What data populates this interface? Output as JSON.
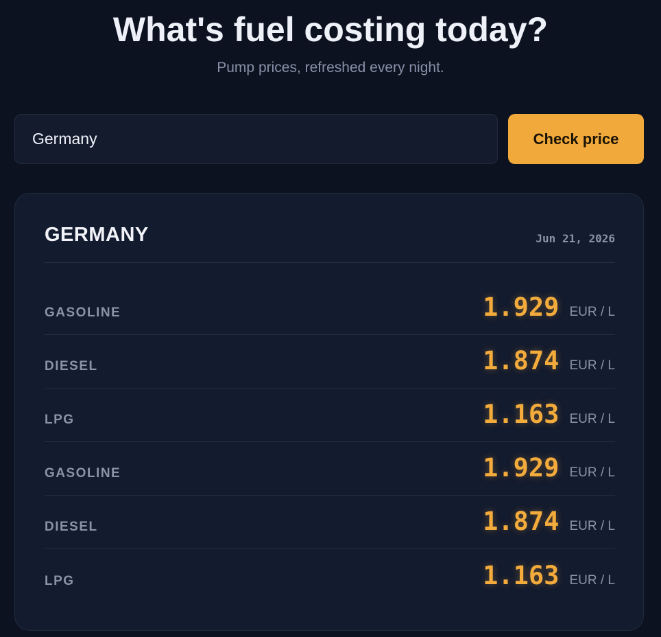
{
  "header": {
    "title": "What's fuel costing today?",
    "subtitle": "Pump prices, refreshed every night."
  },
  "search": {
    "value": "Germany",
    "button_label": "Check price"
  },
  "result": {
    "country": "GERMANY",
    "date": "Jun 21, 2026",
    "rows": [
      {
        "fuel": "GASOLINE",
        "price": "1.929",
        "unit": "EUR / L"
      },
      {
        "fuel": "DIESEL",
        "price": "1.874",
        "unit": "EUR / L"
      },
      {
        "fuel": "LPG",
        "price": "1.163",
        "unit": "EUR / L"
      },
      {
        "fuel": "GASOLINE",
        "price": "1.929",
        "unit": "EUR / L"
      },
      {
        "fuel": "DIESEL",
        "price": "1.874",
        "unit": "EUR / L"
      },
      {
        "fuel": "LPG",
        "price": "1.163",
        "unit": "EUR / L"
      }
    ]
  },
  "colors": {
    "accent": "#f0a93a",
    "background": "#0c1220",
    "card": "#131b2e"
  }
}
